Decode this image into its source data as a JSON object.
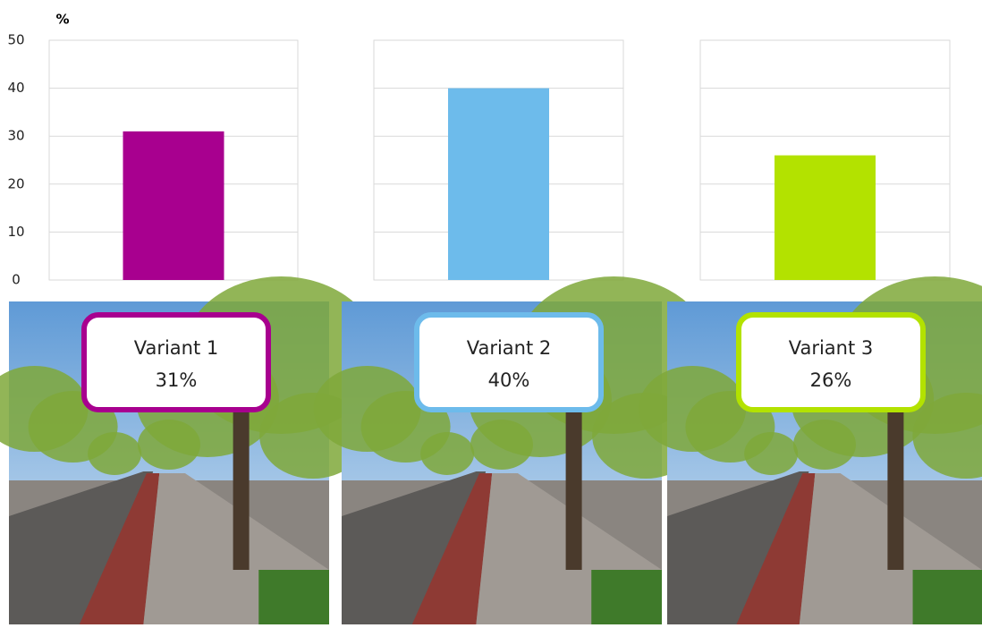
{
  "chart_data": {
    "type": "bar",
    "y_label": "%",
    "categories": [
      "Variant 1",
      "Variant 2",
      "Variant 3"
    ],
    "values": [
      31,
      40,
      26
    ],
    "value_labels": [
      "31%",
      "40%",
      "26%"
    ],
    "colors": [
      "#a8008f",
      "#6dbbeb",
      "#b3e200"
    ],
    "ylim": [
      0,
      50
    ],
    "yticks": [
      0,
      10,
      20,
      30,
      40,
      50
    ],
    "grid": true
  }
}
